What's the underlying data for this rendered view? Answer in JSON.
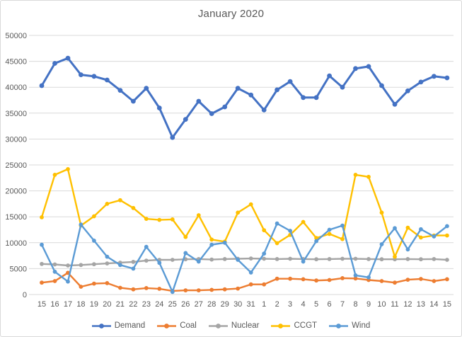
{
  "chart_data": {
    "type": "line",
    "title": "January 2020",
    "xlabel": "",
    "ylabel": "",
    "ylim": [
      0,
      50000
    ],
    "ytick_step": 5000,
    "grid": "horizontal",
    "gridline_color": "#d9d9d9",
    "tick_label_color": "#595959",
    "legend_position": "bottom",
    "marker": "circle",
    "categories": [
      "15",
      "16",
      "17",
      "18",
      "19",
      "20",
      "21",
      "22",
      "23",
      "24",
      "25",
      "26",
      "27",
      "28",
      "29",
      "30",
      "31",
      "1",
      "2",
      "3",
      "4",
      "5",
      "6",
      "7",
      "8",
      "9",
      "10",
      "11",
      "12",
      "13",
      "14",
      "15"
    ],
    "series": [
      {
        "name": "Demand",
        "color": "#4472c4",
        "values": [
          40300,
          44600,
          45600,
          42400,
          42100,
          41400,
          39400,
          37300,
          39800,
          36000,
          30300,
          33800,
          37300,
          34900,
          36200,
          39800,
          38500,
          35600,
          39500,
          41100,
          38000,
          38000,
          42200,
          40000,
          43600,
          44000,
          40300,
          36700,
          39300,
          41000,
          42100,
          41800
        ]
      },
      {
        "name": "Coal",
        "color": "#ed7d31",
        "values": [
          2300,
          2600,
          4200,
          1500,
          2100,
          2200,
          1300,
          1000,
          1250,
          1100,
          700,
          800,
          800,
          900,
          1000,
          1150,
          1950,
          1950,
          3050,
          3050,
          2950,
          2700,
          2800,
          3150,
          3100,
          2800,
          2600,
          2300,
          2850,
          3000,
          2600,
          2950
        ]
      },
      {
        "name": "Nuclear",
        "color": "#a5a5a5",
        "values": [
          5900,
          5800,
          5600,
          5700,
          5850,
          6000,
          6150,
          6300,
          6550,
          6700,
          6700,
          6800,
          6850,
          6750,
          6850,
          6900,
          6950,
          6900,
          6850,
          6900,
          6850,
          6800,
          6850,
          6900,
          6900,
          6850,
          6800,
          6800,
          6850,
          6800,
          6850,
          6700
        ]
      },
      {
        "name": "CCGT",
        "color": "#ffc000",
        "values": [
          14900,
          23100,
          24200,
          13300,
          15100,
          17500,
          18200,
          16700,
          14600,
          14400,
          14500,
          11100,
          15300,
          10600,
          10200,
          15800,
          17400,
          12400,
          9900,
          11500,
          14000,
          10900,
          11700,
          10700,
          23100,
          22700,
          15800,
          7300,
          12900,
          11000,
          11400,
          11400
        ]
      },
      {
        "name": "Wind",
        "color": "#5b9bd5",
        "values": [
          9600,
          4400,
          2500,
          13500,
          10400,
          7300,
          5700,
          5000,
          9200,
          6100,
          500,
          8000,
          6350,
          9600,
          10000,
          6700,
          4250,
          7900,
          13700,
          12300,
          6350,
          10300,
          12500,
          13300,
          3700,
          3300,
          9700,
          12800,
          8700,
          12600,
          11200,
          13200
        ]
      }
    ]
  }
}
